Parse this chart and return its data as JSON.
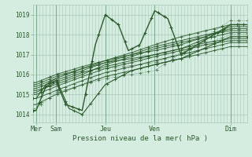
{
  "bg_color": "#d4ede0",
  "grid_color": "#a8c8b8",
  "line_color": "#2d5a2d",
  "ylabel_ticks": [
    1014,
    1015,
    1016,
    1017,
    1018,
    1019
  ],
  "ylim": [
    1013.6,
    1019.5
  ],
  "xlim": [
    0,
    130
  ],
  "xlabel": "Pression niveau de la mer( hPa )",
  "day_labels": [
    "Mer",
    "Sam",
    "Jeu",
    "Ven",
    "Dim"
  ],
  "day_positions": [
    2,
    14,
    44,
    74,
    120
  ],
  "ensemble_lines": [
    {
      "xpts": [
        2,
        14,
        30,
        44,
        60,
        74,
        90,
        105,
        120
      ],
      "ypts": [
        1015.1,
        1015.6,
        1016.1,
        1016.4,
        1016.7,
        1017.0,
        1017.3,
        1017.6,
        1017.8
      ]
    },
    {
      "xpts": [
        2,
        14,
        30,
        44,
        60,
        74,
        90,
        105,
        120
      ],
      "ypts": [
        1015.3,
        1015.7,
        1016.2,
        1016.6,
        1017.0,
        1017.4,
        1017.7,
        1018.0,
        1018.2
      ]
    },
    {
      "xpts": [
        2,
        14,
        30,
        44,
        60,
        74,
        90,
        105,
        120
      ],
      "ypts": [
        1015.0,
        1015.4,
        1015.9,
        1016.3,
        1016.6,
        1016.9,
        1017.2,
        1017.5,
        1017.7
      ]
    },
    {
      "xpts": [
        2,
        14,
        30,
        44,
        60,
        74,
        90,
        105,
        120
      ],
      "ypts": [
        1015.2,
        1015.5,
        1016.0,
        1016.5,
        1016.9,
        1017.3,
        1017.6,
        1017.9,
        1018.3
      ]
    },
    {
      "xpts": [
        2,
        14,
        30,
        44,
        60,
        74,
        90,
        105,
        120
      ],
      "ypts": [
        1015.4,
        1015.8,
        1016.3,
        1016.7,
        1017.1,
        1017.5,
        1017.9,
        1018.2,
        1018.5
      ]
    },
    {
      "xpts": [
        2,
        14,
        30,
        44,
        60,
        74,
        90,
        105,
        120
      ],
      "ypts": [
        1014.8,
        1015.2,
        1015.7,
        1016.1,
        1016.4,
        1016.7,
        1017.0,
        1017.3,
        1017.6
      ]
    },
    {
      "xpts": [
        2,
        14,
        30,
        44,
        60,
        74,
        90,
        105,
        120
      ],
      "ypts": [
        1014.5,
        1015.0,
        1015.5,
        1015.9,
        1016.2,
        1016.5,
        1016.8,
        1017.1,
        1017.4
      ]
    },
    {
      "xpts": [
        2,
        14,
        30,
        44,
        60,
        74,
        90,
        105,
        120
      ],
      "ypts": [
        1015.5,
        1015.9,
        1016.3,
        1016.6,
        1016.8,
        1017.0,
        1017.3,
        1017.8,
        1018.1
      ]
    },
    {
      "xpts": [
        2,
        14,
        30,
        44,
        60,
        74,
        90,
        105,
        120
      ],
      "ypts": [
        1015.6,
        1016.0,
        1016.4,
        1016.7,
        1017.0,
        1017.2,
        1017.5,
        1017.9,
        1018.4
      ]
    }
  ],
  "dramatic_line": {
    "xpts": [
      2,
      8,
      14,
      20,
      30,
      38,
      44,
      52,
      58,
      65,
      74,
      82,
      90,
      100,
      110,
      120
    ],
    "ypts": [
      1014.2,
      1015.4,
      1015.7,
      1014.5,
      1014.2,
      1017.5,
      1019.0,
      1018.5,
      1017.2,
      1017.5,
      1019.2,
      1018.8,
      1017.0,
      1017.5,
      1018.0,
      1018.5
    ]
  },
  "dip_line": {
    "xpts": [
      2,
      8,
      14,
      22,
      30,
      44,
      60,
      74,
      90,
      120
    ],
    "ypts": [
      1014.8,
      1015.5,
      1015.8,
      1014.3,
      1014.0,
      1015.5,
      1016.2,
      1016.5,
      1016.8,
      1017.9
    ]
  },
  "dotted_line1": {
    "xpts": [
      2,
      14,
      44,
      74,
      120
    ],
    "ypts": [
      1014.3,
      1015.1,
      1015.8,
      1016.2,
      1018.7
    ]
  },
  "dotted_line2": {
    "xpts": [
      2,
      14,
      44,
      74,
      120
    ],
    "ypts": [
      1015.6,
      1016.0,
      1016.3,
      1016.6,
      1018.0
    ]
  }
}
